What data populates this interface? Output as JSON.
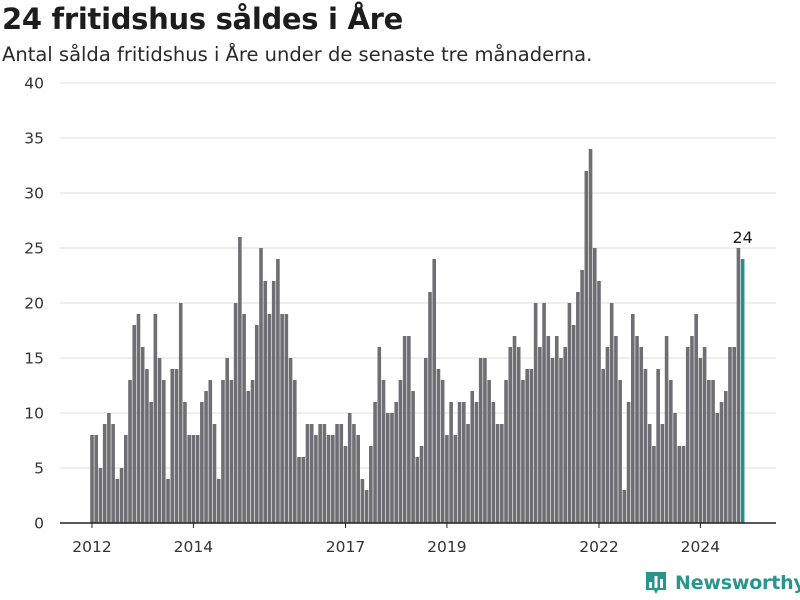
{
  "header": {
    "title": "24 fritidshus såldes i Åre",
    "subtitle": "Antal sålda fritidshus i Åre under de senaste tre månaderna."
  },
  "brand": {
    "name": "Newsworthy",
    "icon": "bar-chart-logo-icon",
    "color": "#2a958e"
  },
  "chart_data": {
    "type": "bar",
    "title": "24 fritidshus såldes i Åre",
    "subtitle": "Antal sålda fritidshus i Åre under de senaste tre månaderna.",
    "xlabel": "",
    "ylabel": "",
    "ylim": [
      0,
      40
    ],
    "y_ticks": [
      0,
      5,
      10,
      15,
      20,
      25,
      30,
      35,
      40
    ],
    "x_ticks": [
      "2012",
      "2014",
      "2017",
      "2019",
      "2022",
      "2024"
    ],
    "grid": "horizontal",
    "legend": "none",
    "bar_color": "#6e6e74",
    "highlight_color": "#1f948d",
    "highlight_last": true,
    "annotation": {
      "text": "24",
      "target": "last"
    },
    "x": [
      "2012-01",
      "2012-02",
      "2012-03",
      "2012-04",
      "2012-05",
      "2012-06",
      "2012-07",
      "2012-08",
      "2012-09",
      "2012-10",
      "2012-11",
      "2012-12",
      "2013-01",
      "2013-02",
      "2013-03",
      "2013-04",
      "2013-05",
      "2013-06",
      "2013-07",
      "2013-08",
      "2013-09",
      "2013-10",
      "2013-11",
      "2013-12",
      "2014-01",
      "2014-02",
      "2014-03",
      "2014-04",
      "2014-05",
      "2014-06",
      "2014-07",
      "2014-08",
      "2014-09",
      "2014-10",
      "2014-11",
      "2014-12",
      "2015-01",
      "2015-02",
      "2015-03",
      "2015-04",
      "2015-05",
      "2015-06",
      "2015-07",
      "2015-08",
      "2015-09",
      "2015-10",
      "2015-11",
      "2015-12",
      "2016-01",
      "2016-02",
      "2016-03",
      "2016-04",
      "2016-05",
      "2016-06",
      "2016-07",
      "2016-08",
      "2016-09",
      "2016-10",
      "2016-11",
      "2016-12",
      "2017-01",
      "2017-02",
      "2017-03",
      "2017-04",
      "2017-05",
      "2017-06",
      "2017-07",
      "2017-08",
      "2017-09",
      "2017-10",
      "2017-11",
      "2017-12",
      "2018-01",
      "2018-02",
      "2018-03",
      "2018-04",
      "2018-05",
      "2018-06",
      "2018-07",
      "2018-08",
      "2018-09",
      "2018-10",
      "2018-11",
      "2018-12",
      "2019-01",
      "2019-02",
      "2019-03",
      "2019-04",
      "2019-05",
      "2019-06",
      "2019-07",
      "2019-08",
      "2019-09",
      "2019-10",
      "2019-11",
      "2019-12",
      "2020-01",
      "2020-02",
      "2020-03",
      "2020-04",
      "2020-05",
      "2020-06",
      "2020-07",
      "2020-08",
      "2020-09",
      "2020-10",
      "2020-11",
      "2020-12",
      "2021-01",
      "2021-02",
      "2021-03",
      "2021-04",
      "2021-05",
      "2021-06",
      "2021-07",
      "2021-08",
      "2021-09",
      "2021-10",
      "2021-11",
      "2021-12",
      "2022-01",
      "2022-02",
      "2022-03",
      "2022-04",
      "2022-05",
      "2022-06",
      "2022-07",
      "2022-08",
      "2022-09",
      "2022-10",
      "2022-11",
      "2022-12",
      "2023-01",
      "2023-02",
      "2023-03",
      "2023-04",
      "2023-05",
      "2023-06",
      "2023-07",
      "2023-08",
      "2023-09",
      "2023-10",
      "2023-11",
      "2023-12",
      "2024-01",
      "2024-02",
      "2024-03",
      "2024-04",
      "2024-05",
      "2024-06",
      "2024-07",
      "2024-08",
      "2024-09",
      "2024-10",
      "2024-11"
    ],
    "values": [
      8,
      8,
      5,
      9,
      10,
      9,
      4,
      5,
      8,
      13,
      18,
      19,
      16,
      14,
      11,
      19,
      15,
      13,
      4,
      14,
      14,
      20,
      11,
      8,
      8,
      8,
      11,
      12,
      13,
      9,
      4,
      13,
      15,
      13,
      20,
      26,
      19,
      12,
      13,
      18,
      25,
      22,
      19,
      22,
      24,
      19,
      19,
      15,
      13,
      6,
      6,
      9,
      9,
      8,
      9,
      9,
      8,
      8,
      9,
      9,
      7,
      10,
      9,
      8,
      4,
      3,
      7,
      11,
      16,
      13,
      10,
      10,
      11,
      13,
      17,
      17,
      12,
      6,
      7,
      15,
      21,
      24,
      14,
      13,
      8,
      11,
      8,
      11,
      11,
      9,
      12,
      11,
      15,
      15,
      13,
      11,
      9,
      9,
      13,
      16,
      17,
      16,
      13,
      14,
      14,
      20,
      16,
      20,
      17,
      15,
      17,
      15,
      16,
      20,
      18,
      21,
      23,
      32,
      34,
      25,
      22,
      14,
      16,
      20,
      17,
      13,
      3,
      11,
      19,
      17,
      16,
      14,
      9,
      7,
      14,
      9,
      17,
      13,
      10,
      7,
      7,
      16,
      17,
      19,
      15,
      16,
      13,
      13,
      10,
      11,
      12,
      16,
      16,
      25,
      24
    ]
  }
}
